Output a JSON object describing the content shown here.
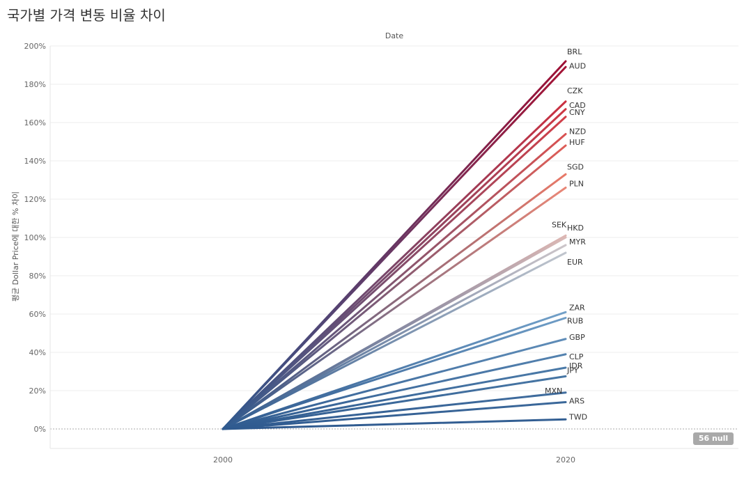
{
  "title": "국가별 가격 변동 비율 차이",
  "null_badge": "56 null",
  "chart_data": {
    "type": "line",
    "title": "국가별 가격 변동 비율 차이",
    "xlabel": "Date",
    "ylabel": "평균 Dollar Price에 대한 % 차이",
    "x": [
      "2000",
      "2020"
    ],
    "ylim": [
      -0.1,
      2.0
    ],
    "yticks": [
      0,
      0.2,
      0.4,
      0.6,
      0.8,
      1.0,
      1.2,
      1.4,
      1.6,
      1.8,
      2.0
    ],
    "ytick_labels": [
      "0%",
      "20%",
      "40%",
      "60%",
      "80%",
      "100%",
      "120%",
      "140%",
      "160%",
      "180%",
      "200%"
    ],
    "grid": true,
    "null_count": "56 null",
    "series": [
      {
        "name": "BRL",
        "values": [
          0,
          1.92
        ]
      },
      {
        "name": "AUD",
        "values": [
          0,
          1.89
        ]
      },
      {
        "name": "CZK",
        "values": [
          0,
          1.71
        ]
      },
      {
        "name": "CAD",
        "values": [
          0,
          1.67
        ]
      },
      {
        "name": "CNY",
        "values": [
          0,
          1.63
        ]
      },
      {
        "name": "NZD",
        "values": [
          0,
          1.54
        ]
      },
      {
        "name": "HUF",
        "values": [
          0,
          1.48
        ]
      },
      {
        "name": "SGD",
        "values": [
          0,
          1.33
        ]
      },
      {
        "name": "PLN",
        "values": [
          0,
          1.26
        ]
      },
      {
        "name": "SEK",
        "values": [
          0,
          1.01
        ]
      },
      {
        "name": "HKD",
        "values": [
          0,
          1.0
        ]
      },
      {
        "name": "MYR",
        "values": [
          0,
          0.96
        ]
      },
      {
        "name": "EUR",
        "values": [
          0,
          0.92
        ]
      },
      {
        "name": "ZAR",
        "values": [
          0,
          0.61
        ]
      },
      {
        "name": "RUB",
        "values": [
          0,
          0.58
        ]
      },
      {
        "name": "GBP",
        "values": [
          0,
          0.47
        ]
      },
      {
        "name": "CLP",
        "values": [
          0,
          0.39
        ]
      },
      {
        "name": "IDR",
        "values": [
          0,
          0.32
        ]
      },
      {
        "name": "JPY",
        "values": [
          0,
          0.275
        ]
      },
      {
        "name": "MXN",
        "values": [
          0,
          0.19
        ]
      },
      {
        "name": "ARS",
        "values": [
          0,
          0.14
        ]
      },
      {
        "name": "TWD",
        "values": [
          0,
          0.05
        ]
      }
    ]
  }
}
